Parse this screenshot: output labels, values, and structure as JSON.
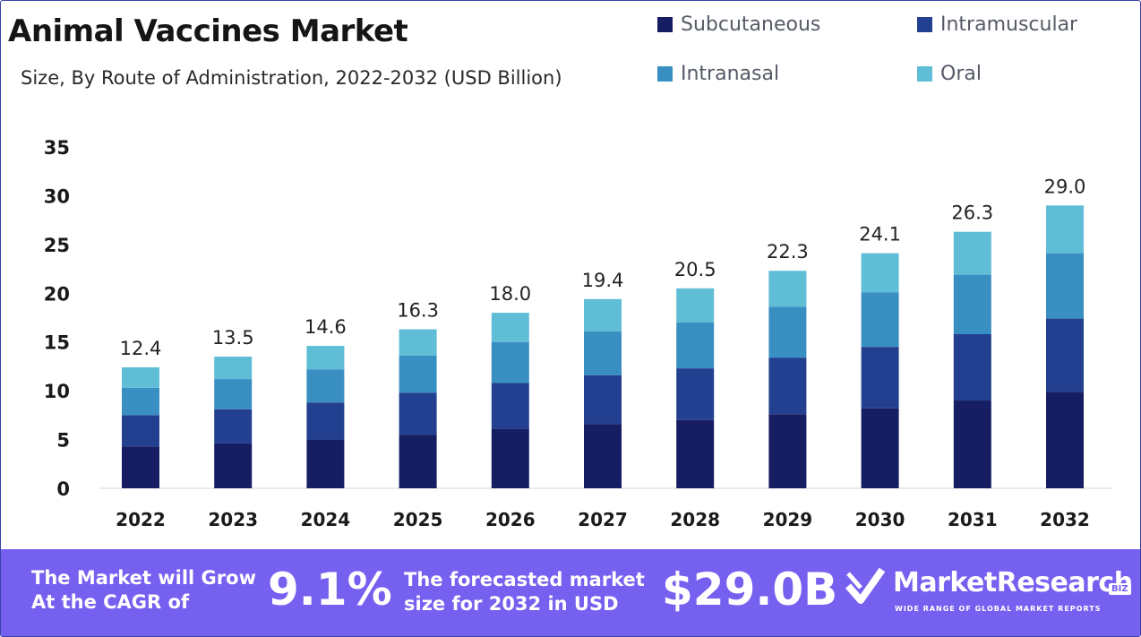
{
  "header": {
    "title": "Animal Vaccines Market",
    "subtitle": "Size, By Route of Administration, 2022-2032 (USD Billion)"
  },
  "legend": [
    {
      "label": "Subcutaneous",
      "color": "#161d63"
    },
    {
      "label": "Intramuscular",
      "color": "#22408f"
    },
    {
      "label": "Intranasal",
      "color": "#3a8fc2"
    },
    {
      "label": "Oral",
      "color": "#5fbdd6"
    }
  ],
  "chart_data": {
    "type": "bar",
    "stacked": true,
    "categories": [
      "2022",
      "2023",
      "2024",
      "2025",
      "2026",
      "2027",
      "2028",
      "2029",
      "2030",
      "2031",
      "2032"
    ],
    "series": [
      {
        "name": "Subcutaneous",
        "color": "#161d63",
        "values": [
          4.3,
          4.6,
          5.0,
          5.5,
          6.1,
          6.6,
          7.0,
          7.6,
          8.2,
          9.0,
          9.9
        ]
      },
      {
        "name": "Intramuscular",
        "color": "#22408f",
        "values": [
          3.2,
          3.5,
          3.8,
          4.3,
          4.7,
          5.0,
          5.3,
          5.8,
          6.3,
          6.8,
          7.5
        ]
      },
      {
        "name": "Intranasal",
        "color": "#3a8fc2",
        "values": [
          2.8,
          3.1,
          3.4,
          3.8,
          4.2,
          4.5,
          4.7,
          5.2,
          5.6,
          6.1,
          6.7
        ]
      },
      {
        "name": "Oral",
        "color": "#5fbdd6",
        "values": [
          2.1,
          2.3,
          2.4,
          2.7,
          3.0,
          3.3,
          3.5,
          3.7,
          4.0,
          4.4,
          4.9
        ]
      }
    ],
    "totals": [
      "12.4",
      "13.5",
      "14.6",
      "16.3",
      "18.0",
      "19.4",
      "20.5",
      "22.3",
      "24.1",
      "26.3",
      "29.0"
    ],
    "y_ticks": [
      "0",
      "5",
      "10",
      "15",
      "20",
      "25",
      "30",
      "35"
    ],
    "ylim": [
      0,
      35
    ],
    "grid": false,
    "legend_position": "top-right"
  },
  "banner": {
    "cagr_text": "The Market will Grow At the CAGR of",
    "cagr_value": "9.1%",
    "forecast_text": "The forecasted market size for 2032 in USD",
    "forecast_value": "$29.0B",
    "brand_name": "MarketResearch",
    "brand_badge": "BIZ",
    "brand_tagline": "WIDE RANGE OF GLOBAL MARKET REPORTS"
  }
}
